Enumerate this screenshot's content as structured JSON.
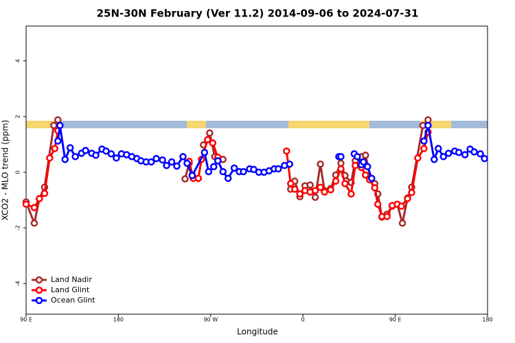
{
  "chart_data": {
    "type": "line",
    "title": "25N-30N February (Ver 11.2)   2014-09-06 to 2024-07-31",
    "x_label": "Longitude",
    "y_label": "XCO2 - MLO trend (ppm)",
    "xlim": [
      90,
      540
    ],
    "xticks": [
      {
        "value": 90,
        "label": "90 E"
      },
      180,
      {
        "value": 270,
        "label": "90 W"
      },
      {
        "value": 360,
        "label": "0"
      },
      {
        "value": 450,
        "label": "90 E"
      },
      {
        "value": 540,
        "label": "180"
      }
    ],
    "ylim": [
      -5.1,
      5.25
    ],
    "yticks": [
      -4,
      -2,
      0,
      2,
      4
    ],
    "legend": "bottom-left",
    "series": [
      {
        "name": "Land Nadir",
        "color": "#a52a2a",
        "x": [
          90,
          98,
          103,
          108,
          117,
          121,
          null,
          245,
          249,
          252,
          null,
          263,
          269,
          274,
          282,
          null,
          348,
          352,
          357,
          362,
          367,
          372,
          377,
          381,
          387,
          392,
          397,
          401,
          407,
          411,
          417,
          421,
          426,
          430,
          433,
          437,
          442,
          447,
          452,
          457,
          462,
          466,
          477,
          482
        ],
        "values": [
          -1.07,
          -1.83,
          -0.95,
          -0.54,
          1.68,
          1.88,
          null,
          -0.24,
          0.32,
          -0.1,
          null,
          0.98,
          1.41,
          0.56,
          0.46,
          null,
          -0.61,
          -0.32,
          -0.88,
          -0.49,
          -0.46,
          -0.9,
          0.29,
          -0.66,
          -0.59,
          -0.1,
          0.32,
          -0.12,
          -0.37,
          0.41,
          0.56,
          0.61,
          -0.22,
          -0.41,
          -0.78,
          -1.61,
          -1.51,
          -1.22,
          -1.15,
          -1.83,
          -0.93,
          -0.54,
          1.68,
          1.88
        ]
      },
      {
        "name": "Land Glint",
        "color": "#ff0000",
        "x": [
          90,
          98,
          103,
          108,
          113,
          118,
          121,
          null,
          249,
          253,
          258,
          261,
          267,
          272,
          277,
          null,
          344,
          348,
          352,
          357,
          362,
          367,
          372,
          377,
          381,
          387,
          392,
          397,
          401,
          407,
          411,
          417,
          421,
          425,
          430,
          433,
          437,
          442,
          447,
          452,
          456,
          462,
          466,
          472,
          478,
          482
        ],
        "values": [
          -1.15,
          -1.27,
          -0.95,
          -0.76,
          0.51,
          0.85,
          1.49,
          null,
          0.39,
          -0.22,
          -0.22,
          0.46,
          1.17,
          1.05,
          0.54,
          null,
          0.76,
          -0.41,
          -0.61,
          -0.78,
          -0.66,
          -0.71,
          -0.66,
          -0.54,
          -0.71,
          -0.63,
          -0.32,
          0.12,
          -0.41,
          -0.78,
          0.24,
          0.17,
          -0.1,
          -0.27,
          -0.56,
          -1.15,
          -1.59,
          -1.59,
          -1.2,
          -1.15,
          -1.22,
          -0.95,
          -0.73,
          0.51,
          0.85,
          1.44
        ]
      },
      {
        "name": "Ocean Glint",
        "color": "#0000ff",
        "x": [
          121,
          123,
          128,
          133,
          138,
          144,
          148,
          154,
          158,
          164,
          168,
          173,
          178,
          183,
          188,
          193,
          198,
          202,
          207,
          212,
          217,
          223,
          227,
          232,
          237,
          243,
          247,
          252,
          264,
          268,
          273,
          277,
          282,
          287,
          293,
          298,
          302,
          308,
          312,
          317,
          322,
          327,
          332,
          336,
          342,
          347,
          null,
          395,
          397,
          null,
          410,
          413,
          417,
          419,
          423,
          427,
          null,
          478,
          482,
          488,
          492,
          497,
          502,
          508,
          512,
          518,
          523,
          527,
          533,
          537
        ],
        "values": [
          1.12,
          1.68,
          0.46,
          0.88,
          0.56,
          0.68,
          0.78,
          0.68,
          0.61,
          0.83,
          0.76,
          0.66,
          0.51,
          0.66,
          0.63,
          0.56,
          0.49,
          0.41,
          0.37,
          0.37,
          0.49,
          0.44,
          0.24,
          0.37,
          0.22,
          0.56,
          0.32,
          -0.12,
          0.71,
          0.02,
          0.2,
          0.41,
          0.02,
          -0.22,
          0.15,
          0.02,
          0.02,
          0.12,
          0.1,
          0,
          0,
          0.05,
          0.12,
          0.12,
          0.24,
          0.29,
          null,
          0.56,
          0.56,
          null,
          0.66,
          0.56,
          0.27,
          0.37,
          0.2,
          -0.22,
          null,
          1.12,
          1.68,
          0.46,
          0.85,
          0.56,
          0.68,
          0.76,
          0.71,
          0.63,
          0.83,
          0.73,
          0.66,
          0.49
        ]
      }
    ]
  }
}
